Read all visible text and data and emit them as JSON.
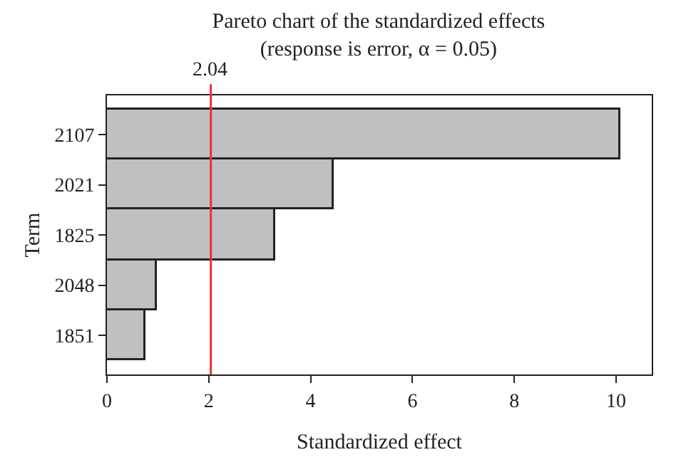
{
  "chart_data": {
    "type": "bar",
    "orientation": "horizontal",
    "title": "Pareto chart of the standardized effects",
    "subtitle": "(response is error, α = 0.05)",
    "xlabel": "Standardized effect",
    "ylabel": "Term",
    "categories": [
      "2107",
      "2021",
      "1825",
      "2048",
      "1851"
    ],
    "values": [
      10.07,
      4.45,
      3.3,
      0.97,
      0.76
    ],
    "color": "#c0c0c0",
    "xlim": [
      0,
      10.7
    ],
    "xticks": [
      0,
      2,
      4,
      6,
      8,
      10
    ],
    "ref_lines": [
      {
        "axis": "x",
        "value": 2.04,
        "label": "2.04",
        "color": "#e8303a"
      }
    ],
    "legend": false
  }
}
